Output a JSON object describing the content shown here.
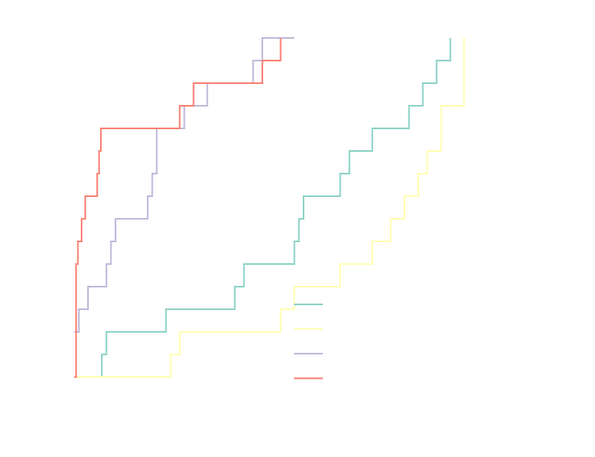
{
  "chart_data": {
    "type": "line",
    "step": true,
    "title": "",
    "xlabel": "",
    "ylabel": "",
    "xlim": [
      0,
      100
    ],
    "ylim": [
      0,
      16
    ],
    "grid": false,
    "legend": {
      "position": "lower-center",
      "entries_have_text": false
    },
    "series": [
      {
        "color": "#8dd3c7",
        "x": [
          0,
          5,
          6,
          7,
          14,
          20,
          23,
          34,
          35,
          37,
          40,
          48,
          49,
          50,
          57,
          58,
          60,
          64,
          65,
          73,
          76,
          79,
          82
        ],
        "y": [
          0,
          0,
          1,
          2,
          2,
          3,
          3,
          3,
          4,
          5,
          5,
          6,
          7,
          8,
          8,
          9,
          10,
          10,
          11,
          12,
          13,
          14,
          15
        ]
      },
      {
        "color": "#ffffb3",
        "x": [
          0,
          15,
          21,
          23,
          45,
          48,
          58,
          65,
          69,
          72,
          75,
          77,
          80,
          85
        ],
        "y": [
          0,
          0,
          1,
          2,
          3,
          4,
          5,
          6,
          7,
          8,
          9,
          10,
          12,
          15
        ]
      },
      {
        "color": "#bebada",
        "x": [
          0,
          1,
          3,
          7,
          8,
          9,
          16,
          17,
          18,
          24,
          29,
          39,
          41,
          48
        ],
        "y": [
          2,
          3,
          4,
          5,
          6,
          7,
          8,
          9,
          11,
          12,
          13,
          14,
          15,
          15
        ]
      },
      {
        "color": "#fb8072",
        "x": [
          0,
          0.4,
          0.8,
          1.6,
          2.4,
          5,
          5.4,
          5.8,
          23,
          26,
          41,
          45
        ],
        "y": [
          0,
          5,
          6,
          7,
          8,
          9,
          10,
          11,
          12,
          13,
          14,
          15
        ]
      }
    ]
  }
}
